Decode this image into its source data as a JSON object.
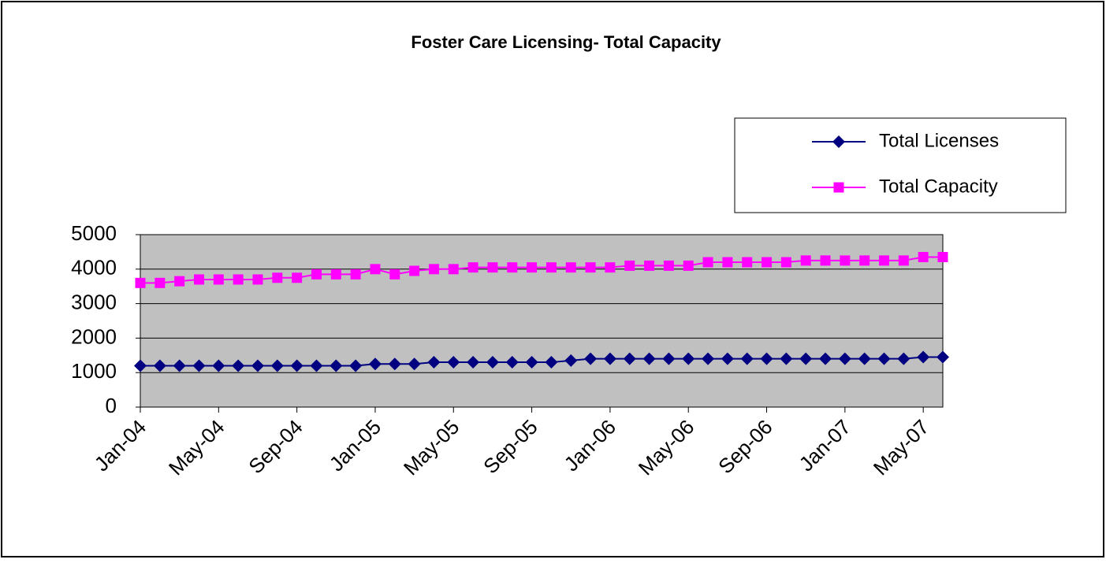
{
  "chart_data": {
    "type": "line",
    "title": "Foster Care Licensing-  Total Capacity",
    "categories": [
      "Jan-04",
      null,
      null,
      null,
      "May-04",
      null,
      null,
      null,
      "Sep-04",
      null,
      null,
      null,
      "Jan-05",
      null,
      null,
      null,
      "May-05",
      null,
      null,
      null,
      "Sep-05",
      null,
      null,
      null,
      "Jan-06",
      null,
      null,
      null,
      "May-06",
      null,
      null,
      null,
      "Sep-06",
      null,
      null,
      null,
      "Jan-07",
      null,
      null,
      null,
      "May-07",
      null
    ],
    "series": [
      {
        "name": "Total Licenses",
        "color": "#000080",
        "marker": "diamond",
        "values": [
          1200,
          1200,
          1200,
          1200,
          1200,
          1200,
          1200,
          1200,
          1200,
          1200,
          1200,
          1200,
          1250,
          1250,
          1250,
          1300,
          1300,
          1300,
          1300,
          1300,
          1300,
          1300,
          1350,
          1400,
          1400,
          1400,
          1400,
          1400,
          1400,
          1400,
          1400,
          1400,
          1400,
          1400,
          1400,
          1400,
          1400,
          1400,
          1400,
          1400,
          1450,
          1450
        ]
      },
      {
        "name": "Total Capacity",
        "color": "#ff00ff",
        "marker": "square",
        "values": [
          3600,
          3600,
          3650,
          3700,
          3700,
          3700,
          3700,
          3750,
          3750,
          3850,
          3850,
          3850,
          4000,
          3850,
          3950,
          4000,
          4000,
          4050,
          4050,
          4050,
          4050,
          4050,
          4050,
          4050,
          4050,
          4100,
          4100,
          4100,
          4100,
          4200,
          4200,
          4200,
          4200,
          4200,
          4250,
          4250,
          4250,
          4250,
          4250,
          4250,
          4350,
          4350
        ]
      }
    ],
    "ylim": [
      0,
      5000
    ],
    "yticks": [
      0,
      1000,
      2000,
      3000,
      4000,
      5000
    ],
    "grid": true,
    "legend": "top-right"
  }
}
